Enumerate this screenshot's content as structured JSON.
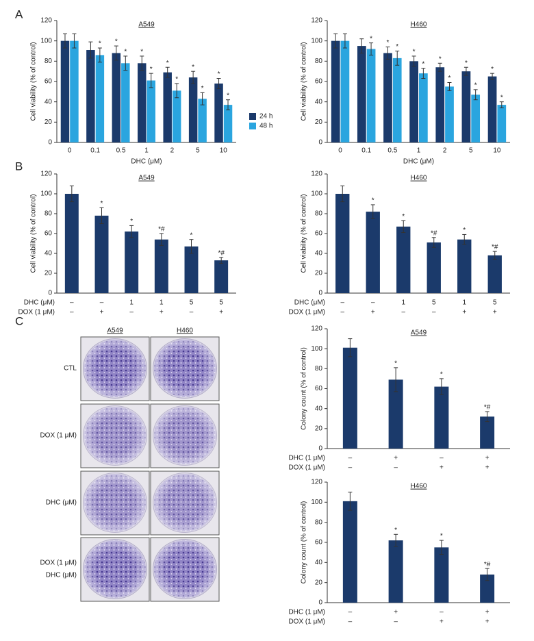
{
  "panels": [
    "A",
    "B",
    "C"
  ],
  "plates": {
    "columns": [
      "A549",
      "H460"
    ],
    "rows": [
      [
        "CTL"
      ],
      [
        "DOX (1 μM)"
      ],
      [
        "DHC (μM)"
      ],
      [
        "DOX (1 μM)",
        "DHC (μM)"
      ]
    ]
  },
  "chart_data": [
    {
      "type": "bar",
      "title": "A549",
      "xlabel": "DHC (μM)",
      "ylabel": "Cell viability (% of control)",
      "categories": [
        "0",
        "0.1",
        "0.5",
        "1",
        "2",
        "5",
        "10"
      ],
      "legend": true,
      "ylim": [
        0,
        120
      ],
      "yticks": [
        0,
        20,
        40,
        60,
        80,
        100,
        120
      ],
      "series": [
        {
          "name": "24 h",
          "color": "#1b3a6b",
          "values": [
            100,
            91,
            88,
            78,
            69,
            64,
            58
          ],
          "errors": [
            7,
            8,
            7,
            7,
            5,
            6,
            5
          ],
          "annotations": [
            null,
            null,
            "*",
            "*",
            "*",
            "*",
            "*"
          ]
        },
        {
          "name": "48 h",
          "color": "#2aa5df",
          "values": [
            100,
            86,
            78,
            61,
            51,
            43,
            37
          ],
          "errors": [
            7,
            7,
            7,
            7,
            7,
            6,
            5
          ],
          "annotations": [
            null,
            "*",
            "*",
            "*",
            "*",
            "*",
            "*"
          ]
        }
      ]
    },
    {
      "type": "bar",
      "title": "H460",
      "xlabel": "DHC (μM)",
      "ylabel": "Cell viability (% of control)",
      "categories": [
        "0",
        "0.1",
        "0.5",
        "1",
        "2",
        "5",
        "10"
      ],
      "ylim": [
        0,
        120
      ],
      "yticks": [
        0,
        20,
        40,
        60,
        80,
        100,
        120
      ],
      "series": [
        {
          "color": "#1b3a6b",
          "values": [
            100,
            95,
            88,
            80,
            74,
            70,
            65
          ],
          "errors": [
            7,
            7,
            6,
            5,
            4,
            4,
            3
          ],
          "annotations": [
            null,
            null,
            "*",
            "*",
            "*",
            "*",
            "*"
          ]
        },
        {
          "color": "#2aa5df",
          "values": [
            100,
            92,
            83,
            68,
            55,
            47,
            37
          ],
          "errors": [
            7,
            6,
            7,
            5,
            4,
            5,
            3
          ],
          "annotations": [
            null,
            "*",
            "*",
            "*",
            "*",
            "*",
            "*"
          ]
        }
      ]
    },
    {
      "type": "bar",
      "title": "A549",
      "ylabel": "Cell viability (% of control)",
      "category_rows": [
        {
          "name": "DHC (μM)",
          "labels": [
            "–",
            "–",
            "1",
            "1",
            "5",
            "5"
          ]
        },
        {
          "name": "DOX (1 μM)",
          "labels": [
            "–",
            "+",
            "–",
            "+",
            "–",
            "+"
          ]
        }
      ],
      "ylim": [
        0,
        120
      ],
      "yticks": [
        0,
        20,
        40,
        60,
        80,
        100,
        120
      ],
      "series": [
        {
          "color": "#1b3a6b",
          "values": [
            100,
            78,
            62,
            54,
            47,
            33
          ],
          "errors": [
            8,
            8,
            6,
            6,
            7,
            3
          ],
          "annotations": [
            null,
            "*",
            "*",
            "*#",
            "*",
            "*#"
          ]
        }
      ]
    },
    {
      "type": "bar",
      "title": "H460",
      "ylabel": "Cell viability (% of control)",
      "category_rows": [
        {
          "name": "DHC (μM)",
          "labels": [
            "–",
            "–",
            "1",
            "5",
            "1",
            "5"
          ]
        },
        {
          "name": "DOX (1 μM)",
          "labels": [
            "–",
            "+",
            "–",
            "–",
            "+",
            "+"
          ]
        }
      ],
      "ylim": [
        0,
        120
      ],
      "yticks": [
        0,
        20,
        40,
        60,
        80,
        100,
        120
      ],
      "series": [
        {
          "color": "#1b3a6b",
          "values": [
            100,
            82,
            67,
            51,
            54,
            38
          ],
          "errors": [
            8,
            7,
            6,
            5,
            5,
            4
          ],
          "annotations": [
            null,
            "*",
            "*",
            "*#",
            "*",
            "*#"
          ]
        }
      ]
    },
    {
      "type": "bar",
      "title": "A549",
      "ylabel": "Colony count (% of control)",
      "category_rows": [
        {
          "name": "DHC (1 μM)",
          "labels": [
            "–",
            "+",
            "–",
            "+"
          ]
        },
        {
          "name": "DOX (1 μM)",
          "labels": [
            "–",
            "–",
            "+",
            "+"
          ]
        }
      ],
      "ylim": [
        0,
        120
      ],
      "yticks": [
        0,
        20,
        40,
        60,
        80,
        100,
        120
      ],
      "series": [
        {
          "color": "#1b3a6b",
          "values": [
            101,
            69,
            62,
            32
          ],
          "errors": [
            9,
            12,
            8,
            5
          ],
          "annotations": [
            null,
            "*",
            "*",
            "*#"
          ]
        }
      ]
    },
    {
      "type": "bar",
      "title": "H460",
      "ylabel": "Colony count (% of control)",
      "category_rows": [
        {
          "name": "DHC (1 μM)",
          "labels": [
            "–",
            "+",
            "–",
            "+"
          ]
        },
        {
          "name": "DOX (1 μM)",
          "labels": [
            "–",
            "–",
            "+",
            "+"
          ]
        }
      ],
      "ylim": [
        0,
        120
      ],
      "yticks": [
        0,
        20,
        40,
        60,
        80,
        100,
        120
      ],
      "series": [
        {
          "color": "#1b3a6b",
          "values": [
            101,
            62,
            55,
            28
          ],
          "errors": [
            9,
            6,
            7,
            6
          ],
          "annotations": [
            null,
            "*",
            "*",
            "*#"
          ]
        }
      ]
    }
  ]
}
